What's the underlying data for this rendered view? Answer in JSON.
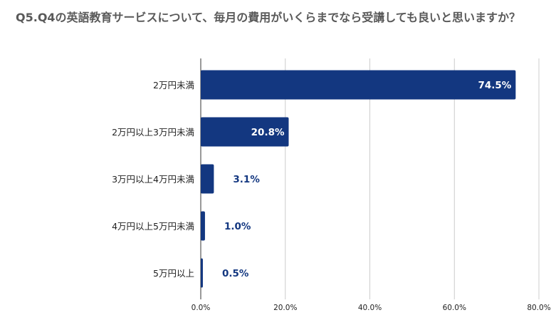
{
  "chart_data": {
    "type": "bar",
    "orientation": "horizontal",
    "title": "Q5.Q4の英語教育サービスについて、毎月の費用がいくらまでなら受講しても良いと思いますか？",
    "categories": [
      "2万円未満",
      "2万円以上3万円未満",
      "3万円以上4万円未満",
      "4万円以上5万円未満",
      "5万円以上"
    ],
    "values": [
      74.5,
      20.8,
      3.1,
      1.0,
      0.5
    ],
    "value_labels": [
      "74.5%",
      "20.8%",
      "3.1%",
      "1.0%",
      "0.5%"
    ],
    "x_ticks": [
      "0.0%",
      "20.0%",
      "40.0%",
      "60.0%",
      "80.0%"
    ],
    "xlim": [
      0,
      80
    ],
    "grid": true,
    "bar_color": "#133780"
  }
}
